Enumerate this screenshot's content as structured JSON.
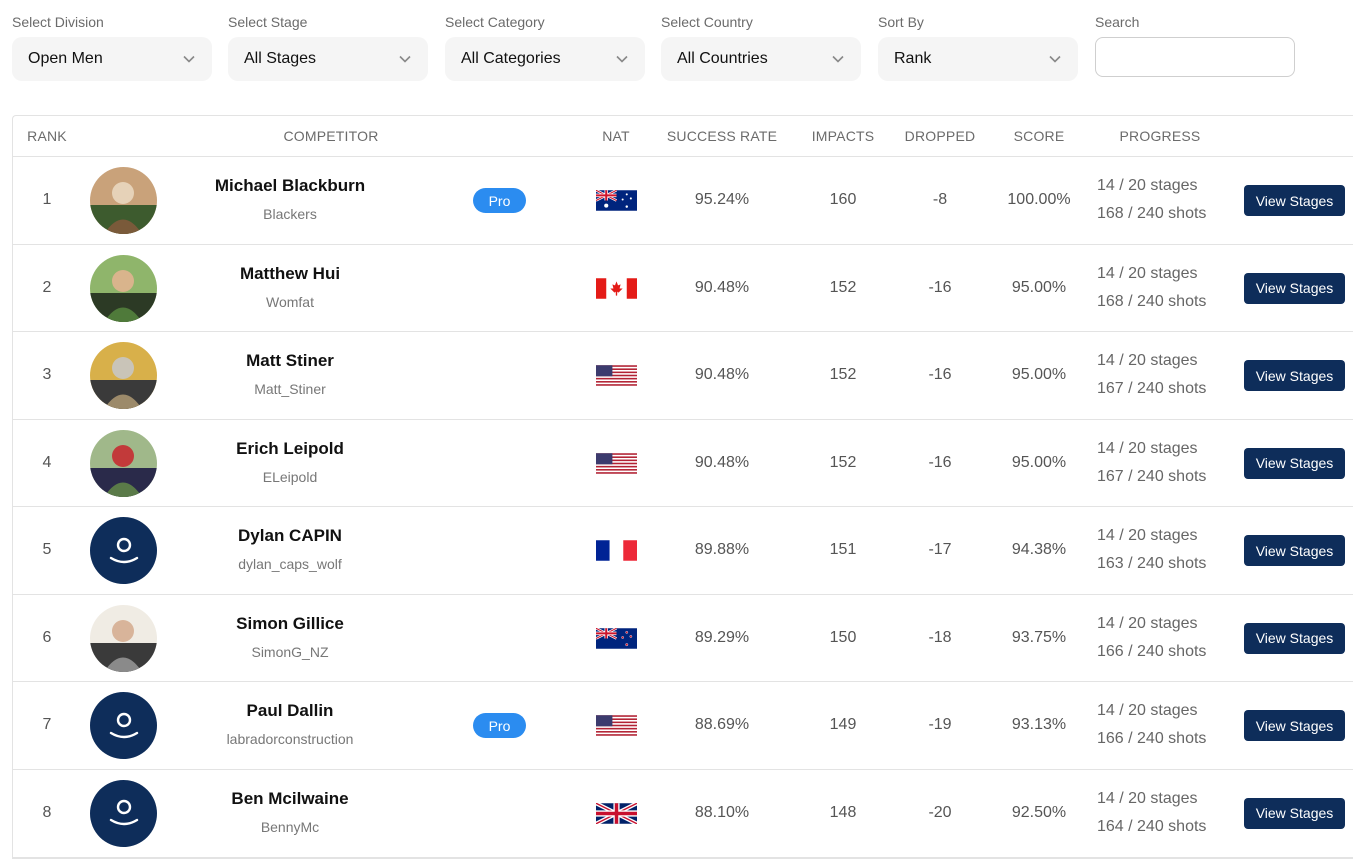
{
  "filters": {
    "division": {
      "label": "Select Division",
      "value": "Open Men"
    },
    "stage": {
      "label": "Select Stage",
      "value": "All Stages"
    },
    "category": {
      "label": "Select Category",
      "value": "All Categories"
    },
    "country": {
      "label": "Select Country",
      "value": "All Countries"
    },
    "sort": {
      "label": "Sort By",
      "value": "Rank"
    },
    "search": {
      "label": "Search",
      "value": "",
      "placeholder": ""
    }
  },
  "table": {
    "headers": {
      "rank": "RANK",
      "competitor": "COMPETITOR",
      "nat": "NAT",
      "success_rate": "SUCCESS RATE",
      "impacts": "IMPACTS",
      "dropped": "DROPPED",
      "score": "SCORE",
      "progress": "PROGRESS"
    },
    "view_label": "View Stages",
    "badge_label": "Pro",
    "rows": [
      {
        "rank": "1",
        "name": "Michael Blackburn",
        "handle": "Blackers",
        "pro": true,
        "flag": "australia",
        "success_rate": "95.24%",
        "impacts": "160",
        "dropped": "-8",
        "score": "100.00%",
        "stages": "14 / 20 stages",
        "shots": "168 / 240 shots",
        "avatar": "photo"
      },
      {
        "rank": "2",
        "name": "Matthew Hui",
        "handle": "Womfat",
        "pro": false,
        "flag": "canada",
        "success_rate": "90.48%",
        "impacts": "152",
        "dropped": "-16",
        "score": "95.00%",
        "stages": "14 / 20 stages",
        "shots": "168 / 240 shots",
        "avatar": "photo"
      },
      {
        "rank": "3",
        "name": "Matt Stiner",
        "handle": "Matt_Stiner",
        "pro": false,
        "flag": "usa",
        "success_rate": "90.48%",
        "impacts": "152",
        "dropped": "-16",
        "score": "95.00%",
        "stages": "14 / 20 stages",
        "shots": "167 / 240 shots",
        "avatar": "photo"
      },
      {
        "rank": "4",
        "name": "Erich Leipold",
        "handle": "ELeipold",
        "pro": false,
        "flag": "usa",
        "success_rate": "90.48%",
        "impacts": "152",
        "dropped": "-16",
        "score": "95.00%",
        "stages": "14 / 20 stages",
        "shots": "167 / 240 shots",
        "avatar": "photo"
      },
      {
        "rank": "5",
        "name": "Dylan CAPIN",
        "handle": "dylan_caps_wolf",
        "pro": false,
        "flag": "france",
        "success_rate": "89.88%",
        "impacts": "151",
        "dropped": "-17",
        "score": "94.38%",
        "stages": "14 / 20 stages",
        "shots": "163 / 240 shots",
        "avatar": "placeholder"
      },
      {
        "rank": "6",
        "name": "Simon Gillice",
        "handle": "SimonG_NZ",
        "pro": false,
        "flag": "new-zealand",
        "success_rate": "89.29%",
        "impacts": "150",
        "dropped": "-18",
        "score": "93.75%",
        "stages": "14 / 20 stages",
        "shots": "166 / 240 shots",
        "avatar": "photo"
      },
      {
        "rank": "7",
        "name": "Paul Dallin",
        "handle": "labradorconstruction",
        "pro": true,
        "flag": "usa",
        "success_rate": "88.69%",
        "impacts": "149",
        "dropped": "-19",
        "score": "93.13%",
        "stages": "14 / 20 stages",
        "shots": "166 / 240 shots",
        "avatar": "placeholder"
      },
      {
        "rank": "8",
        "name": "Ben Mcilwaine",
        "handle": "BennyMc",
        "pro": false,
        "flag": "uk",
        "success_rate": "88.10%",
        "impacts": "148",
        "dropped": "-20",
        "score": "92.50%",
        "stages": "14 / 20 stages",
        "shots": "164 / 240 shots",
        "avatar": "placeholder"
      }
    ]
  },
  "colors": {
    "button_bg": "#0e2d5a",
    "badge_bg": "#2b8cf0",
    "placeholder_avatar_bg": "#0e2d5a"
  }
}
